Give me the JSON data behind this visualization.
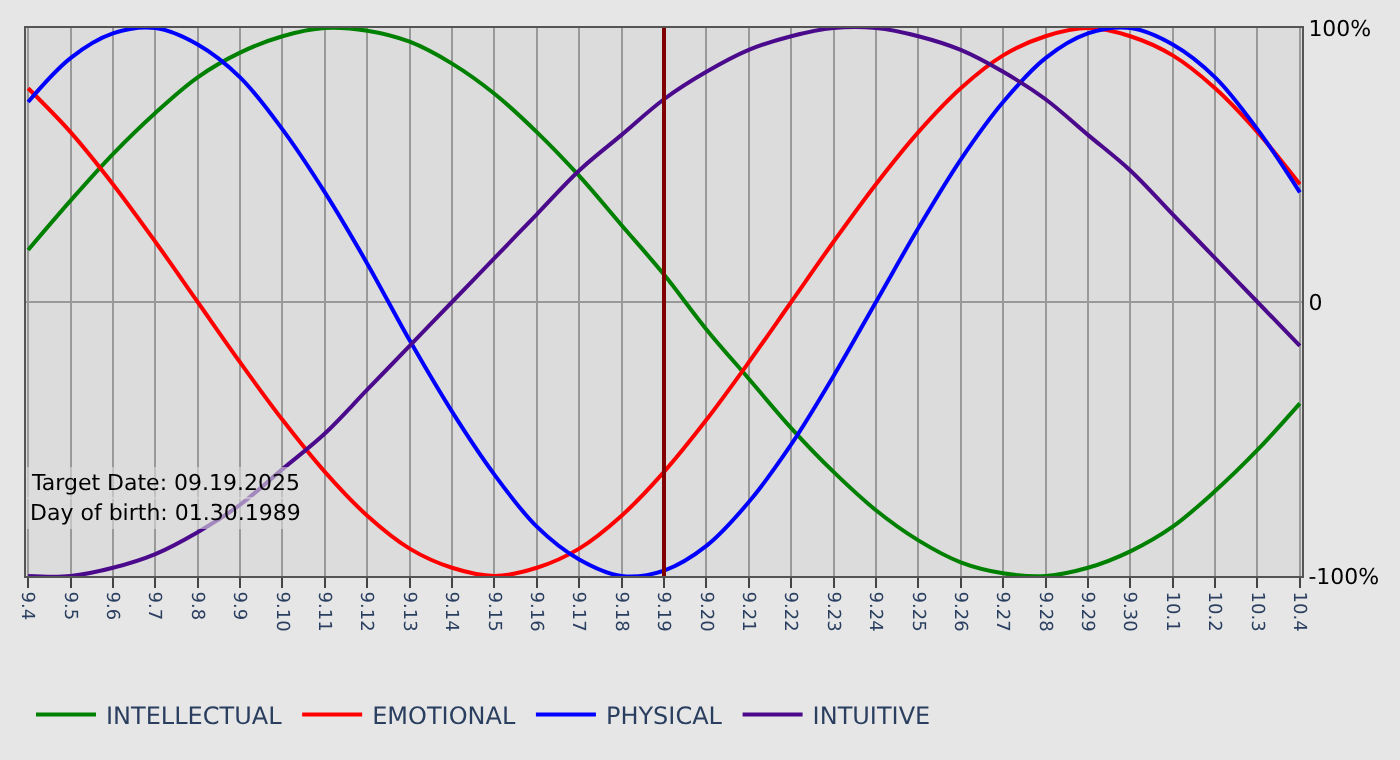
{
  "chart_data": {
    "type": "line",
    "categories": [
      "9.4",
      "9.5",
      "9.6",
      "9.7",
      "9.8",
      "9.9",
      "9.10",
      "9.11",
      "9.12",
      "9.13",
      "9.14",
      "9.15",
      "9.16",
      "9.17",
      "9.18",
      "9.19",
      "9.20",
      "9.21",
      "9.22",
      "9.23",
      "9.24",
      "9.25",
      "9.26",
      "9.27",
      "9.28",
      "9.29",
      "9.30",
      "10.1",
      "10.2",
      "10.3",
      "10.4"
    ],
    "series": [
      {
        "name": "INTELLECTUAL",
        "color": "#008000",
        "values": [
          19,
          37,
          54,
          69,
          82,
          91,
          97,
          100,
          99,
          95,
          87,
          76,
          62,
          46,
          28,
          10,
          -10,
          -28,
          -46,
          -62,
          -76,
          -87,
          -95,
          -99,
          -100,
          -97,
          -91,
          -82,
          -69,
          -54,
          -37
        ]
      },
      {
        "name": "EMOTIONAL",
        "color": "#ff0000",
        "values": [
          78,
          62,
          43,
          22,
          0,
          -22,
          -43,
          -62,
          -78,
          -90,
          -97,
          -100,
          -97,
          -90,
          -78,
          -62,
          -43,
          -22,
          0,
          22,
          43,
          62,
          78,
          90,
          97,
          100,
          97,
          90,
          78,
          62,
          43
        ]
      },
      {
        "name": "PHYSICAL",
        "color": "#0000ff",
        "values": [
          73,
          89,
          98,
          100,
          94,
          82,
          63,
          40,
          14,
          -14,
          -40,
          -63,
          -82,
          -94,
          -100,
          -98,
          -89,
          -73,
          -52,
          -27,
          0,
          27,
          52,
          73,
          89,
          98,
          100,
          94,
          82,
          63,
          40
        ]
      },
      {
        "name": "INTUITIVE",
        "color": "#4b0a8c",
        "values": [
          -100,
          -100,
          -97,
          -92,
          -84,
          -74,
          -61,
          -48,
          -32,
          -16,
          0,
          16,
          32,
          48,
          61,
          74,
          84,
          92,
          97,
          100,
          100,
          97,
          92,
          84,
          74,
          61,
          48,
          32,
          16,
          0,
          -16
        ]
      }
    ],
    "ylim": [
      -100,
      100
    ],
    "yticks": [
      {
        "value": 100,
        "label": "100%"
      },
      0,
      {
        "value": -100,
        "label": "-100%"
      }
    ],
    "ref_lines": [
      {
        "axis": "x",
        "value": "9.19",
        "label": null,
        "color": "#800000"
      }
    ],
    "annotations": [
      "Target Date: 09.19.2025",
      "Day of birth: 01.30.1989"
    ],
    "grid": true,
    "legend": "bottom",
    "marker": "none",
    "line_style": "solid"
  }
}
